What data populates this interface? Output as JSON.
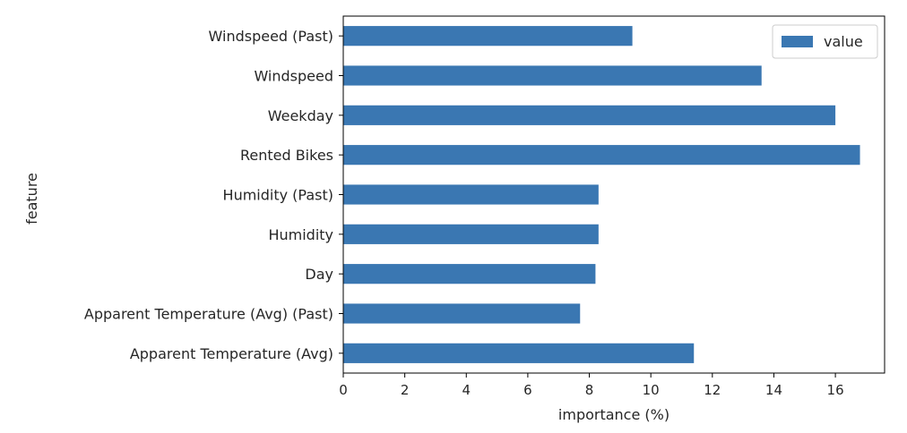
{
  "chart_data": {
    "type": "bar",
    "orientation": "horizontal",
    "categories": [
      "Windspeed (Past)",
      "Windspeed",
      "Weekday",
      "Rented Bikes",
      "Humidity (Past)",
      "Humidity",
      "Day",
      "Apparent Temperature (Avg) (Past)",
      "Apparent Temperature (Avg)"
    ],
    "series": [
      {
        "name": "value",
        "color": "#3a77b2",
        "values": [
          9.4,
          13.6,
          16.0,
          16.8,
          8.3,
          8.3,
          8.2,
          7.7,
          11.4
        ]
      }
    ],
    "xlabel": "importance (%)",
    "ylabel": "feature",
    "xlim": [
      0,
      17.6
    ],
    "xticks": [
      0,
      2,
      4,
      6,
      8,
      10,
      12,
      14,
      16
    ],
    "grid": false,
    "legend_position": "top-right"
  }
}
